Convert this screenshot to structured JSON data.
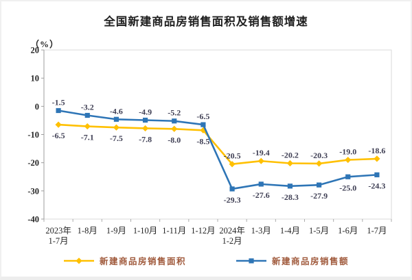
{
  "title": "全国新建商品房销售面积及销售额增速",
  "unit_label": "（%）",
  "chart_data": {
    "type": "line",
    "title": "全国新建商品房销售面积及销售额增速",
    "ylabel": "（%）",
    "xlabel": "",
    "ylim": [
      -40,
      20
    ],
    "yticks": [
      20,
      10,
      0,
      -10,
      -20,
      -30,
      -40
    ],
    "grid": false,
    "legend_position": "bottom",
    "categories": [
      "2023年\n1-7月",
      "1-8月",
      "1-9月",
      "1-10月",
      "1-11月",
      "1-12月",
      "2024年\n1-2月",
      "1-3月",
      "1-4月",
      "1-5月",
      "1-6月",
      "1-7月"
    ],
    "series": [
      {
        "name": "新建商品房销售面积",
        "color": "#FFC000",
        "marker": "diamond",
        "values": [
          -6.5,
          -7.1,
          -7.5,
          -7.8,
          -8.0,
          -8.5,
          -20.5,
          -19.4,
          -20.2,
          -20.3,
          -19.0,
          -18.6
        ],
        "label_side": [
          "below",
          "below",
          "below",
          "below",
          "below",
          "below",
          "above",
          "above",
          "above",
          "above",
          "above",
          "above"
        ]
      },
      {
        "name": "新建商品房销售额",
        "color": "#2E75B6",
        "marker": "square",
        "values": [
          -1.5,
          -3.2,
          -4.6,
          -4.9,
          -5.2,
          -6.5,
          -29.3,
          -27.6,
          -28.3,
          -27.9,
          -25.0,
          -24.3
        ],
        "label_side": [
          "above",
          "above",
          "above",
          "above",
          "above",
          "above",
          "below",
          "below",
          "below",
          "below",
          "below",
          "below"
        ]
      }
    ],
    "colors": {
      "data_label": "#3F3F54",
      "axis_line": "#9C9C9C",
      "frame_line": "#D9D9D9",
      "bottom_tick": "#ABABAB",
      "tick_label": "#262626",
      "legend_text": "#A05A3C",
      "title_text": "#1F1F1F"
    }
  }
}
